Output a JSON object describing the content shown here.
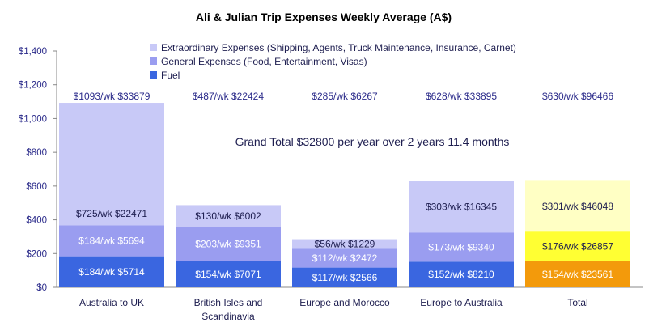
{
  "chart_data": {
    "type": "bar",
    "stacked": true,
    "title": "Ali & Julian Trip Expenses Weekly Average (A$)",
    "xlabel": "",
    "ylabel": "",
    "ylim": [
      0,
      1400
    ],
    "yticks": [
      0,
      200,
      400,
      600,
      800,
      1000,
      1200,
      1400
    ],
    "ytick_labels": [
      "$0",
      "$200",
      "$400",
      "$600",
      "$800",
      "$1,000",
      "$1,200",
      "$1,400"
    ],
    "grid": false,
    "legend_position": "top-right",
    "categories": [
      [
        "Australia to UK"
      ],
      [
        "British Isles and",
        "Scandinavia"
      ],
      [
        "Europe and Morocco"
      ],
      [
        "Europe to Australia"
      ],
      [
        "Total"
      ]
    ],
    "series": [
      {
        "name": "Fuel",
        "values": [
          184,
          154,
          117,
          152,
          154
        ],
        "labels": [
          "$184/wk $5714",
          "$154/wk $7071",
          "$117/wk $2566",
          "$152/wk $8210",
          "$154/wk $23561"
        ]
      },
      {
        "name": "General Expenses (Food, Entertainment, Visas)",
        "values": [
          184,
          203,
          112,
          173,
          176
        ],
        "labels": [
          "$184/wk   $5694",
          "$203/wk   $9351",
          "$112/wk   $2472",
          "$173/wk   $9340",
          "$176/wk   $26857"
        ]
      },
      {
        "name": "Extraordinary Expenses (Shipping, Agents, Truck Maintenance, Insurance, Carnet)",
        "values": [
          725,
          130,
          56,
          303,
          301
        ],
        "labels": [
          "$725/wk   $22471",
          "$130/wk   $6002",
          "$56/wk   $1229",
          "$303/wk   $16345",
          "$301/wk   $46048"
        ]
      }
    ],
    "totals": [
      "$1093/wk $33879",
      "$487/wk $22424",
      "$285/wk $6267",
      "$628/wk $33895",
      "$630/wk $96466"
    ],
    "annotation": "Grand Total $32800 per year over 2 years 11.4 months",
    "colors": {
      "fuel": "#3a66e0",
      "general": "#9a9df0",
      "extraordinary": "#c8c9f7",
      "total_fuel": "#f39a0b",
      "total_general": "#ffff33",
      "total_extraordinary": "#ffffc4"
    }
  }
}
